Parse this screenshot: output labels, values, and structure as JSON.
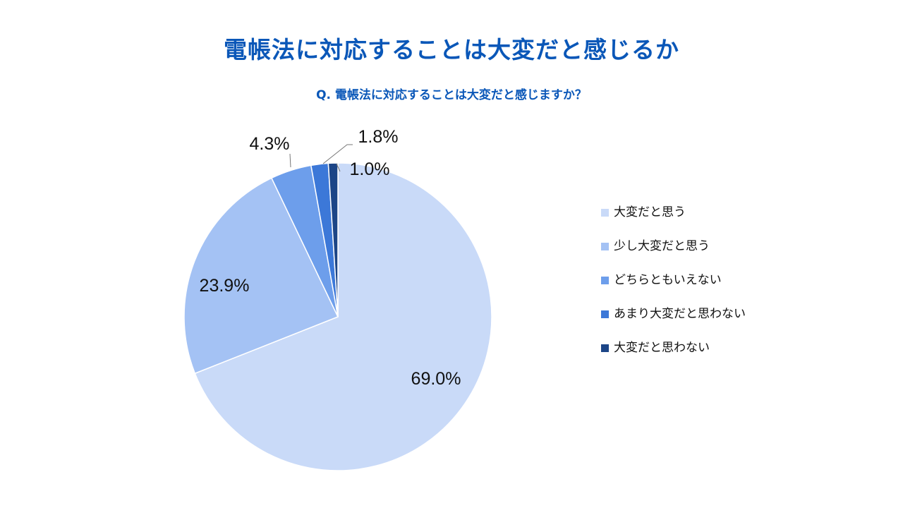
{
  "header": {
    "title": "電帳法に対応することは大変だと感じるか",
    "subtitle": "Q. 電帳法に対応することは大変だと感じますか？"
  },
  "colors": {
    "title": "#0a57b8",
    "slices": [
      "#c9daf8",
      "#a4c2f4",
      "#6d9eeb",
      "#3c78d8",
      "#1c4587"
    ]
  },
  "chart_data": {
    "type": "pie",
    "title": "電帳法に対応することは大変だと感じるか",
    "subtitle": "Q. 電帳法に対応することは大変だと感じますか？",
    "categories": [
      "大変だと思う",
      "少し大変だと思う",
      "どちらともいえない",
      "あまり大変だと思わない",
      "大変だと思わない"
    ],
    "values": [
      69.0,
      23.9,
      4.3,
      1.8,
      1.0
    ],
    "data_labels": [
      "69.0%",
      "23.9%",
      "4.3%",
      "1.8%",
      "1.0%"
    ],
    "legend": "right",
    "start": "12 o'clock",
    "direction": "clockwise"
  }
}
